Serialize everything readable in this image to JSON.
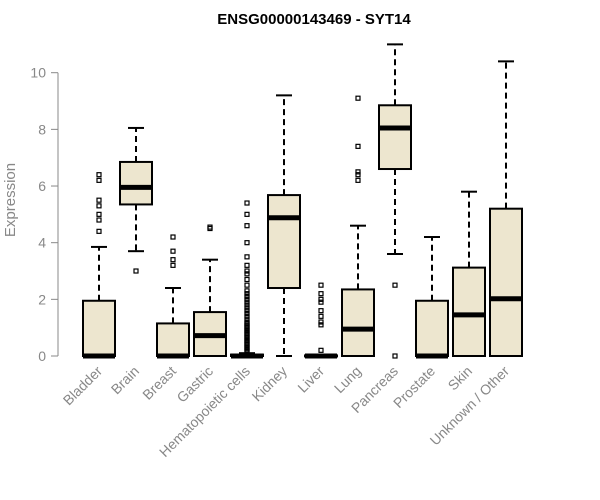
{
  "chart_data": {
    "type": "box",
    "title": "ENSG00000143469 - SYT14",
    "ylabel": "Expression",
    "xlabel": "",
    "ylim": [
      0,
      11
    ],
    "yticks": [
      0,
      2,
      4,
      6,
      8,
      10
    ],
    "box_fill": "#ede6cf",
    "categories": [
      "Bladder",
      "Brain",
      "Breast",
      "Gastric",
      "Hematopoietic cells",
      "Kidney",
      "Liver",
      "Lung",
      "Pancreas",
      "Prostate",
      "Skin",
      "Unknown / Other"
    ],
    "boxes": [
      {
        "whisker_low": 0,
        "q1": 0,
        "median": 0,
        "q3": 1.95,
        "whisker_high": 3.85,
        "outliers": [
          4.4,
          4.8,
          5.0,
          5.3,
          5.5,
          6.2,
          6.4
        ]
      },
      {
        "whisker_low": 3.7,
        "q1": 5.35,
        "median": 5.95,
        "q3": 6.85,
        "whisker_high": 8.05,
        "outliers": [
          3.0
        ]
      },
      {
        "whisker_low": 0,
        "q1": 0,
        "median": 0,
        "q3": 1.15,
        "whisker_high": 2.4,
        "outliers": [
          3.2,
          3.4,
          3.7,
          4.2
        ]
      },
      {
        "whisker_low": 0,
        "q1": 0,
        "median": 0.72,
        "q3": 1.55,
        "whisker_high": 3.4,
        "outliers": [
          4.5,
          4.55
        ]
      },
      {
        "whisker_low": 0,
        "q1": 0,
        "median": 0,
        "q3": 0.05,
        "whisker_high": 0.1,
        "outliers": [
          0.15,
          0.2,
          0.25,
          0.3,
          0.35,
          0.4,
          0.45,
          0.5,
          0.55,
          0.6,
          0.65,
          0.7,
          0.75,
          0.8,
          0.85,
          0.9,
          0.95,
          1.0,
          1.05,
          1.1,
          1.15,
          1.2,
          1.3,
          1.4,
          1.5,
          1.6,
          1.7,
          1.8,
          1.9,
          2.0,
          2.1,
          2.2,
          2.3,
          2.5,
          2.7,
          2.9,
          3.0,
          3.2,
          3.5,
          4.0,
          4.6,
          5.0,
          5.4
        ]
      },
      {
        "whisker_low": 0,
        "q1": 2.4,
        "median": 4.88,
        "q3": 5.68,
        "whisker_high": 9.2,
        "outliers": []
      },
      {
        "whisker_low": 0,
        "q1": 0,
        "median": 0,
        "q3": 0.02,
        "whisker_high": 0.04,
        "outliers": [
          0.2,
          1.1,
          1.2,
          1.4,
          1.6,
          1.9,
          2.0,
          2.2,
          2.5
        ]
      },
      {
        "whisker_low": 0,
        "q1": 0,
        "median": 0.95,
        "q3": 2.35,
        "whisker_high": 4.6,
        "outliers": [
          6.2,
          6.4,
          6.5,
          7.4,
          9.1
        ]
      },
      {
        "whisker_low": 3.6,
        "q1": 6.6,
        "median": 8.05,
        "q3": 8.85,
        "whisker_high": 11.0,
        "outliers": [
          2.5,
          0.0
        ]
      },
      {
        "whisker_low": 0,
        "q1": 0,
        "median": 0,
        "q3": 1.95,
        "whisker_high": 4.2,
        "outliers": []
      },
      {
        "whisker_low": 0,
        "q1": 0,
        "median": 1.45,
        "q3": 3.12,
        "whisker_high": 5.8,
        "outliers": []
      },
      {
        "whisker_low": 0,
        "q1": 0,
        "median": 2.02,
        "q3": 5.2,
        "whisker_high": 10.4,
        "outliers": []
      }
    ]
  }
}
